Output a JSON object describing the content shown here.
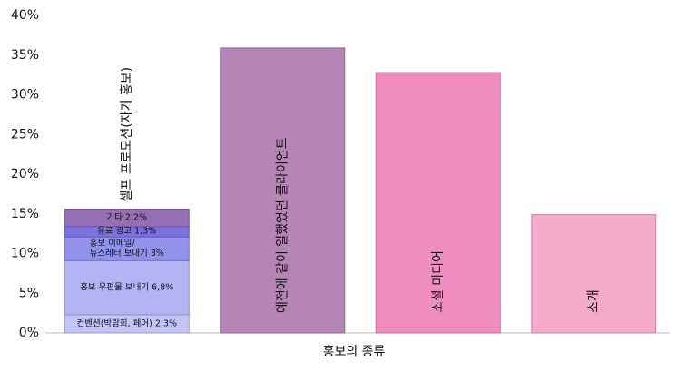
{
  "chart_data": {
    "type": "bar",
    "x_label": "홍보의 종류",
    "categories": [
      "셀프 프로모션(자기 홍보)",
      "예전에 같이 일했었던 클라이언트",
      "소셜 미디어",
      "소개"
    ],
    "series": [
      {
        "color": "#c4c4f8",
        "values": [
          2.3,
          null,
          null,
          null
        ],
        "value_labels": [
          "컨벤션(박람회, 페어) 2,3%",
          null,
          null,
          null
        ]
      },
      {
        "color": "#b4b4f4",
        "values": [
          6.8,
          null,
          null,
          null
        ],
        "value_labels": [
          "홍보 우편물 보내기 6,8%",
          null,
          null,
          null
        ]
      },
      {
        "color": "#9292ea",
        "values": [
          3,
          null,
          null,
          null
        ],
        "value_labels": [
          "홍보 이메일/\n뉴스레터 보내기 3%",
          null,
          null,
          null
        ]
      },
      {
        "color": "#7d70e0",
        "values": [
          1.3,
          null,
          null,
          null
        ],
        "value_labels": [
          "유료 광고 1,3%",
          null,
          null,
          null
        ]
      },
      {
        "color": "#946fb4",
        "values": [
          2.2,
          null,
          null,
          null
        ],
        "value_labels": [
          "기타 2,2%",
          null,
          null,
          null
        ]
      },
      {
        "colors": [
          null,
          "#b585b5",
          "#ef8dc1",
          "#f5aac9"
        ],
        "values": [
          null,
          35.9,
          32.8,
          14.9
        ]
      }
    ],
    "ylim": [
      0,
      40
    ],
    "yticks": [
      {
        "value": 0,
        "label": "0%"
      },
      {
        "value": 5,
        "label": "5%"
      },
      {
        "value": 10,
        "label": "10%"
      },
      {
        "value": 15,
        "label": "15%"
      },
      {
        "value": 20,
        "label": "20%"
      },
      {
        "value": 25,
        "label": "25%"
      },
      {
        "value": 30,
        "label": "30%"
      },
      {
        "value": 35,
        "label": "35%"
      },
      {
        "value": 40,
        "label": "40%"
      }
    ]
  }
}
